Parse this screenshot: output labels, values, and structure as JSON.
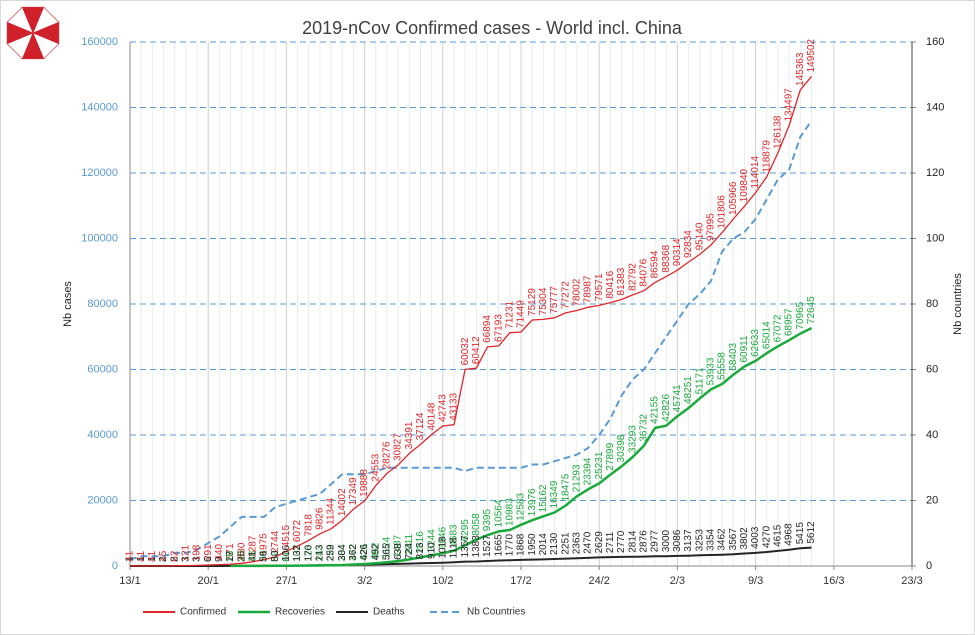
{
  "chart_data": {
    "type": "line",
    "title": "2019-nCov Confirmed cases - World incl. China",
    "y_label": "Nb cases",
    "y2_label": "Nb countries",
    "x": [
      "13/1",
      "14/1",
      "15/1",
      "16/1",
      "17/1",
      "18/1",
      "19/1",
      "20/1",
      "21/1",
      "22/1",
      "23/1",
      "24/1",
      "25/1",
      "26/1",
      "27/1",
      "28/1",
      "29/1",
      "30/1",
      "31/1",
      "1/2",
      "2/2",
      "3/2",
      "4/2",
      "5/2",
      "6/2",
      "7/2",
      "8/2",
      "9/2",
      "10/2",
      "11/2",
      "12/2",
      "13/2",
      "14/2",
      "15/2",
      "16/2",
      "17/2",
      "18/2",
      "19/2",
      "20/2",
      "21/2",
      "22/2",
      "23/2",
      "24/2",
      "25/2",
      "26/2",
      "27/2",
      "28/2",
      "29/2",
      "1/3",
      "2/3",
      "3/3",
      "4/3",
      "5/3",
      "6/3",
      "7/3",
      "8/3",
      "9/3",
      "10/3",
      "11/3",
      "12/3",
      "13/3",
      "14/3"
    ],
    "xlim": [
      "13/1",
      "23/3"
    ],
    "xticks": [
      "13/1",
      "20/1",
      "27/1",
      "3/2",
      "10/2",
      "17/2",
      "24/2",
      "2/3",
      "9/3",
      "16/3",
      "23/3"
    ],
    "ylim": [
      0,
      160000
    ],
    "yticks": [
      0,
      20000,
      40000,
      60000,
      80000,
      100000,
      120000,
      140000,
      160000
    ],
    "y2lim": [
      0,
      160
    ],
    "y2ticks": [
      0,
      20,
      40,
      60,
      80,
      100,
      120,
      140,
      160
    ],
    "grid": true,
    "legend": "bottom",
    "series": [
      {
        "name": "Confirmed",
        "color": "#e0262a",
        "labels": true,
        "values": [
          41,
          41,
          41,
          45,
          62,
          121,
          198,
          291,
          440,
          571,
          830,
          1287,
          1975,
          2744,
          4515,
          6072,
          7818,
          9826,
          11344,
          14002,
          17349,
          19888,
          24553,
          28276,
          30827,
          34391,
          37124,
          40148,
          42743,
          43133,
          60032,
          60412,
          66894,
          67193,
          71231,
          71449,
          75129,
          75304,
          75777,
          77272,
          78002,
          78987,
          79571,
          80416,
          81383,
          82792,
          84076,
          86594,
          88368,
          90314,
          92834,
          95140,
          97995,
          101806,
          105966,
          109840,
          114014,
          118879,
          126138,
          134497,
          145363,
          149502
        ]
      },
      {
        "name": "Recoveries",
        "color": "#1aaa3c",
        "labels": true,
        "values": [
          null,
          null,
          null,
          null,
          null,
          null,
          null,
          null,
          null,
          28,
          30,
          36,
          39,
          52,
          61,
          107,
          126,
          143,
          222,
          284,
          472,
          621,
          852,
          1124,
          1487,
          2011,
          2616,
          3244,
          3946,
          4683,
          6295,
          8058,
          9395,
          10564,
          10983,
          12583,
          13976,
          15162,
          16349,
          18475,
          21293,
          23394,
          25231,
          27899,
          30398,
          33293,
          36732,
          42155,
          42826,
          45741,
          48251,
          51171,
          53933,
          55558,
          58403,
          60911,
          62633,
          65014,
          67072,
          68957,
          70965,
          72645
        ]
      },
      {
        "name": "Deaths",
        "color": "#262626",
        "labels": true,
        "values": [
          1,
          1,
          1,
          2,
          2,
          3,
          3,
          6,
          9,
          17,
          25,
          41,
          56,
          80,
          106,
          132,
          170,
          213,
          259,
          304,
          362,
          426,
          492,
          565,
          638,
          724,
          813,
          910,
          1018,
          1118,
          1357,
          1383,
          1527,
          1665,
          1770,
          1868,
          1950,
          2014,
          2130,
          2251,
          2363,
          2470,
          2629,
          2711,
          2770,
          2814,
          2876,
          2977,
          3000,
          3086,
          3137,
          3253,
          3354,
          3462,
          3567,
          3802,
          4003,
          4270,
          4615,
          4968,
          5415,
          5612
        ]
      },
      {
        "name": "Nb Countries",
        "color": "#5b9bd5",
        "axis": "y2",
        "dashed": true,
        "labels": false,
        "values": [
          2,
          3,
          3,
          3,
          4,
          4,
          5,
          7,
          9,
          12,
          15,
          15,
          15,
          18,
          19,
          20,
          21,
          22,
          25,
          28,
          28,
          28,
          29,
          30,
          30,
          30,
          30,
          30,
          30,
          30,
          29,
          30,
          30,
          30,
          30,
          30,
          31,
          31,
          32,
          33,
          34,
          36,
          40,
          45,
          52,
          57,
          60,
          65,
          70,
          75,
          80,
          83,
          87,
          96,
          100,
          102,
          106,
          112,
          118,
          121,
          131,
          136
        ]
      }
    ]
  }
}
